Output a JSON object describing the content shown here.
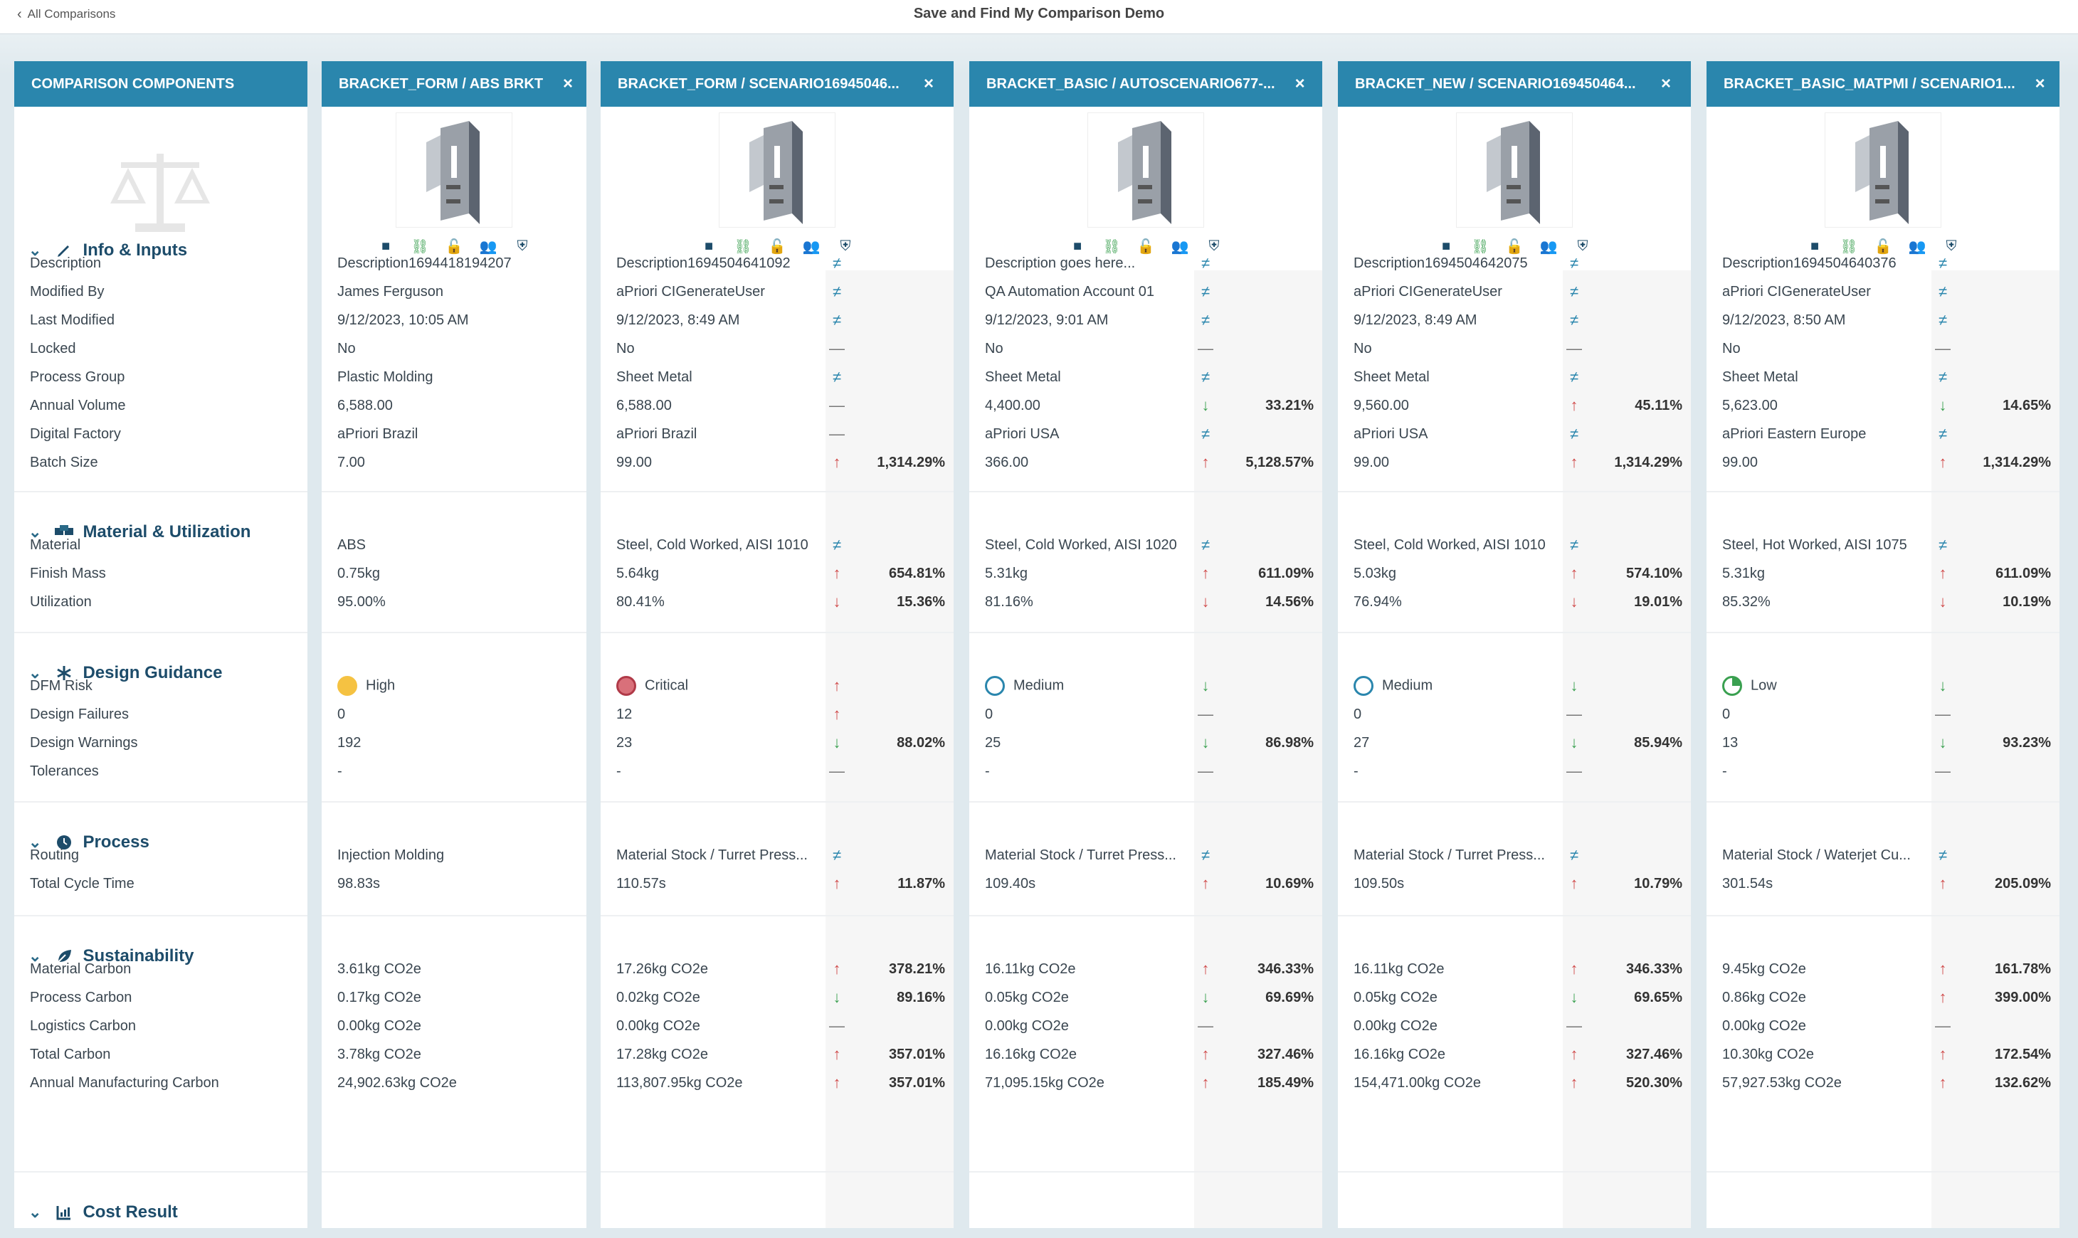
{
  "page": {
    "back_label": "All Comparisons",
    "title": "Save and Find My Comparison Demo"
  },
  "components_header": "COMPARISON COMPONENTS",
  "sections": [
    {
      "name": "Info & Inputs",
      "icon": "pencil-icon",
      "rows": [
        "Description",
        "Modified By",
        "Last Modified",
        "Locked",
        "Process Group",
        "Annual Volume",
        "Digital Factory",
        "Batch Size"
      ]
    },
    {
      "name": "Material & Utilization",
      "icon": "boxes-icon",
      "rows": [
        "Material",
        "Finish Mass",
        "Utilization"
      ]
    },
    {
      "name": "Design Guidance",
      "icon": "asterisk-icon",
      "rows": [
        "DFM Risk",
        "Design Failures",
        "Design Warnings",
        "Tolerances"
      ]
    },
    {
      "name": "Process",
      "icon": "clock-icon",
      "rows": [
        "Routing",
        "Total Cycle Time"
      ]
    },
    {
      "name": "Sustainability",
      "icon": "leaf-icon",
      "rows": [
        "Material Carbon",
        "Process Carbon",
        "Logistics Carbon",
        "Total Carbon",
        "Annual Manufacturing Carbon"
      ]
    },
    {
      "name": "Cost Result",
      "icon": "chart-icon",
      "rows": []
    }
  ],
  "scenarios": [
    {
      "name": "BRACKET_FORM / ABS BRKT",
      "close": "×",
      "values": [
        [
          "Description1694418194207",
          "James Ferguson",
          "9/12/2023, 10:05 AM",
          "No",
          "Plastic Molding",
          "6,588.00",
          "aPriori Brazil",
          "7.00"
        ],
        [
          "ABS",
          "0.75kg",
          "95.00%"
        ],
        [
          "High",
          "0",
          "192",
          "-"
        ],
        [
          "Injection Molding",
          "98.83s"
        ],
        [
          "3.61kg CO2e",
          "0.17kg CO2e",
          "0.00kg CO2e",
          "3.78kg CO2e",
          "24,902.63kg CO2e"
        ]
      ],
      "dfm_color": "#f5c242",
      "deltas": null
    },
    {
      "name": "BRACKET_FORM / SCENARIO16945046...",
      "close": "×",
      "values": [
        [
          "Description1694504641092",
          "aPriori CIGenerateUser",
          "9/12/2023, 8:49 AM",
          "No",
          "Sheet Metal",
          "6,588.00",
          "aPriori Brazil",
          "99.00"
        ],
        [
          "Steel, Cold Worked, AISI 1010",
          "5.64kg",
          "80.41%"
        ],
        [
          "Critical",
          "12",
          "23",
          "-"
        ],
        [
          "Material Stock / Turret Press...",
          "110.57s"
        ],
        [
          "17.26kg CO2e",
          "0.02kg CO2e",
          "0.00kg CO2e",
          "17.28kg CO2e",
          "113,807.95kg CO2e"
        ]
      ],
      "dfm_color": "#d9707a",
      "deltas": [
        [
          [
            "≠",
            ""
          ],
          [
            "≠",
            ""
          ],
          [
            "≠",
            ""
          ],
          [
            "—",
            ""
          ],
          [
            "≠",
            ""
          ],
          [
            "—",
            ""
          ],
          [
            "—",
            ""
          ],
          [
            "↑",
            "1,314.29%"
          ]
        ],
        [
          [
            "≠",
            ""
          ],
          [
            "↑",
            "654.81%"
          ],
          [
            "↓r",
            "15.36%"
          ]
        ],
        [
          [
            "↑",
            ""
          ],
          [
            "↑",
            ""
          ],
          [
            "↓",
            "88.02%"
          ],
          [
            "—",
            ""
          ]
        ],
        [
          [
            "≠",
            ""
          ],
          [
            "↑",
            "11.87%"
          ]
        ],
        [
          [
            "↑",
            "378.21%"
          ],
          [
            "↓",
            "89.16%"
          ],
          [
            "—",
            ""
          ],
          [
            "↑",
            "357.01%"
          ],
          [
            "↑",
            "357.01%"
          ]
        ]
      ]
    },
    {
      "name": "BRACKET_BASIC / AUTOSCENARIO677-...",
      "close": "×",
      "values": [
        [
          "Description goes here...",
          "QA Automation Account 01",
          "9/12/2023, 9:01 AM",
          "No",
          "Sheet Metal",
          "4,400.00",
          "aPriori USA",
          "366.00"
        ],
        [
          "Steel, Cold Worked, AISI 1020",
          "5.31kg",
          "81.16%"
        ],
        [
          "Medium",
          "0",
          "25",
          "-"
        ],
        [
          "Material Stock / Turret Press...",
          "109.40s"
        ],
        [
          "16.11kg CO2e",
          "0.05kg CO2e",
          "0.00kg CO2e",
          "16.16kg CO2e",
          "71,095.15kg CO2e"
        ]
      ],
      "dfm_color": "#ffffff",
      "deltas": [
        [
          [
            "≠",
            ""
          ],
          [
            "≠",
            ""
          ],
          [
            "≠",
            ""
          ],
          [
            "—",
            ""
          ],
          [
            "≠",
            ""
          ],
          [
            "↓",
            "33.21%"
          ],
          [
            "≠",
            ""
          ],
          [
            "↑",
            "5,128.57%"
          ]
        ],
        [
          [
            "≠",
            ""
          ],
          [
            "↑",
            "611.09%"
          ],
          [
            "↓r",
            "14.56%"
          ]
        ],
        [
          [
            "↓",
            ""
          ],
          [
            "—",
            ""
          ],
          [
            "↓",
            "86.98%"
          ],
          [
            "—",
            ""
          ]
        ],
        [
          [
            "≠",
            ""
          ],
          [
            "↑",
            "10.69%"
          ]
        ],
        [
          [
            "↑",
            "346.33%"
          ],
          [
            "↓",
            "69.69%"
          ],
          [
            "—",
            ""
          ],
          [
            "↑",
            "327.46%"
          ],
          [
            "↑",
            "185.49%"
          ]
        ]
      ]
    },
    {
      "name": "BRACKET_NEW / SCENARIO169450464...",
      "close": "×",
      "values": [
        [
          "Description1694504642075",
          "aPriori CIGenerateUser",
          "9/12/2023, 8:49 AM",
          "No",
          "Sheet Metal",
          "9,560.00",
          "aPriori USA",
          "99.00"
        ],
        [
          "Steel, Cold Worked, AISI 1010",
          "5.03kg",
          "76.94%"
        ],
        [
          "Medium",
          "0",
          "27",
          "-"
        ],
        [
          "Material Stock / Turret Press...",
          "109.50s"
        ],
        [
          "16.11kg CO2e",
          "0.05kg CO2e",
          "0.00kg CO2e",
          "16.16kg CO2e",
          "154,471.00kg CO2e"
        ]
      ],
      "dfm_color": "#ffffff",
      "deltas": [
        [
          [
            "≠",
            ""
          ],
          [
            "≠",
            ""
          ],
          [
            "≠",
            ""
          ],
          [
            "—",
            ""
          ],
          [
            "≠",
            ""
          ],
          [
            "↑",
            "45.11%"
          ],
          [
            "≠",
            ""
          ],
          [
            "↑",
            "1,314.29%"
          ]
        ],
        [
          [
            "≠",
            ""
          ],
          [
            "↑",
            "574.10%"
          ],
          [
            "↓r",
            "19.01%"
          ]
        ],
        [
          [
            "↓",
            ""
          ],
          [
            "—",
            ""
          ],
          [
            "↓",
            "85.94%"
          ],
          [
            "—",
            ""
          ]
        ],
        [
          [
            "≠",
            ""
          ],
          [
            "↑",
            "10.79%"
          ]
        ],
        [
          [
            "↑",
            "346.33%"
          ],
          [
            "↓",
            "69.65%"
          ],
          [
            "—",
            ""
          ],
          [
            "↑",
            "327.46%"
          ],
          [
            "↑",
            "520.30%"
          ]
        ]
      ]
    },
    {
      "name": "BRACKET_BASIC_MATPMI / SCENARIO1...",
      "close": "×",
      "values": [
        [
          "Description1694504640376",
          "aPriori CIGenerateUser",
          "9/12/2023, 8:50 AM",
          "No",
          "Sheet Metal",
          "5,623.00",
          "aPriori Eastern Europe",
          "99.00"
        ],
        [
          "Steel, Hot Worked, AISI 1075",
          "5.31kg",
          "85.32%"
        ],
        [
          "Low",
          "0",
          "13",
          "-"
        ],
        [
          "Material Stock / Waterjet Cu...",
          "301.54s"
        ],
        [
          "9.45kg CO2e",
          "0.86kg CO2e",
          "0.00kg CO2e",
          "10.30kg CO2e",
          "57,927.53kg CO2e"
        ]
      ],
      "dfm_color": "#ffffff",
      "deltas": [
        [
          [
            "≠",
            ""
          ],
          [
            "≠",
            ""
          ],
          [
            "≠",
            ""
          ],
          [
            "—",
            ""
          ],
          [
            "≠",
            ""
          ],
          [
            "↓",
            "14.65%"
          ],
          [
            "≠",
            ""
          ],
          [
            "↑",
            "1,314.29%"
          ]
        ],
        [
          [
            "≠",
            ""
          ],
          [
            "↑",
            "611.09%"
          ],
          [
            "↓r",
            "10.19%"
          ]
        ],
        [
          [
            "↓",
            ""
          ],
          [
            "—",
            ""
          ],
          [
            "↓",
            "93.23%"
          ],
          [
            "—",
            ""
          ]
        ],
        [
          [
            "≠",
            ""
          ],
          [
            "↑",
            "205.09%"
          ]
        ],
        [
          [
            "↑",
            "161.78%"
          ],
          [
            "↑",
            "399.00%"
          ],
          [
            "—",
            ""
          ],
          [
            "↑",
            "172.54%"
          ],
          [
            "↑",
            "132.62%"
          ]
        ]
      ]
    }
  ],
  "colors": {
    "header": "#2a86ad",
    "accent": "#1d4c6a",
    "up": "#d04a4a",
    "down": "#3aa050"
  }
}
